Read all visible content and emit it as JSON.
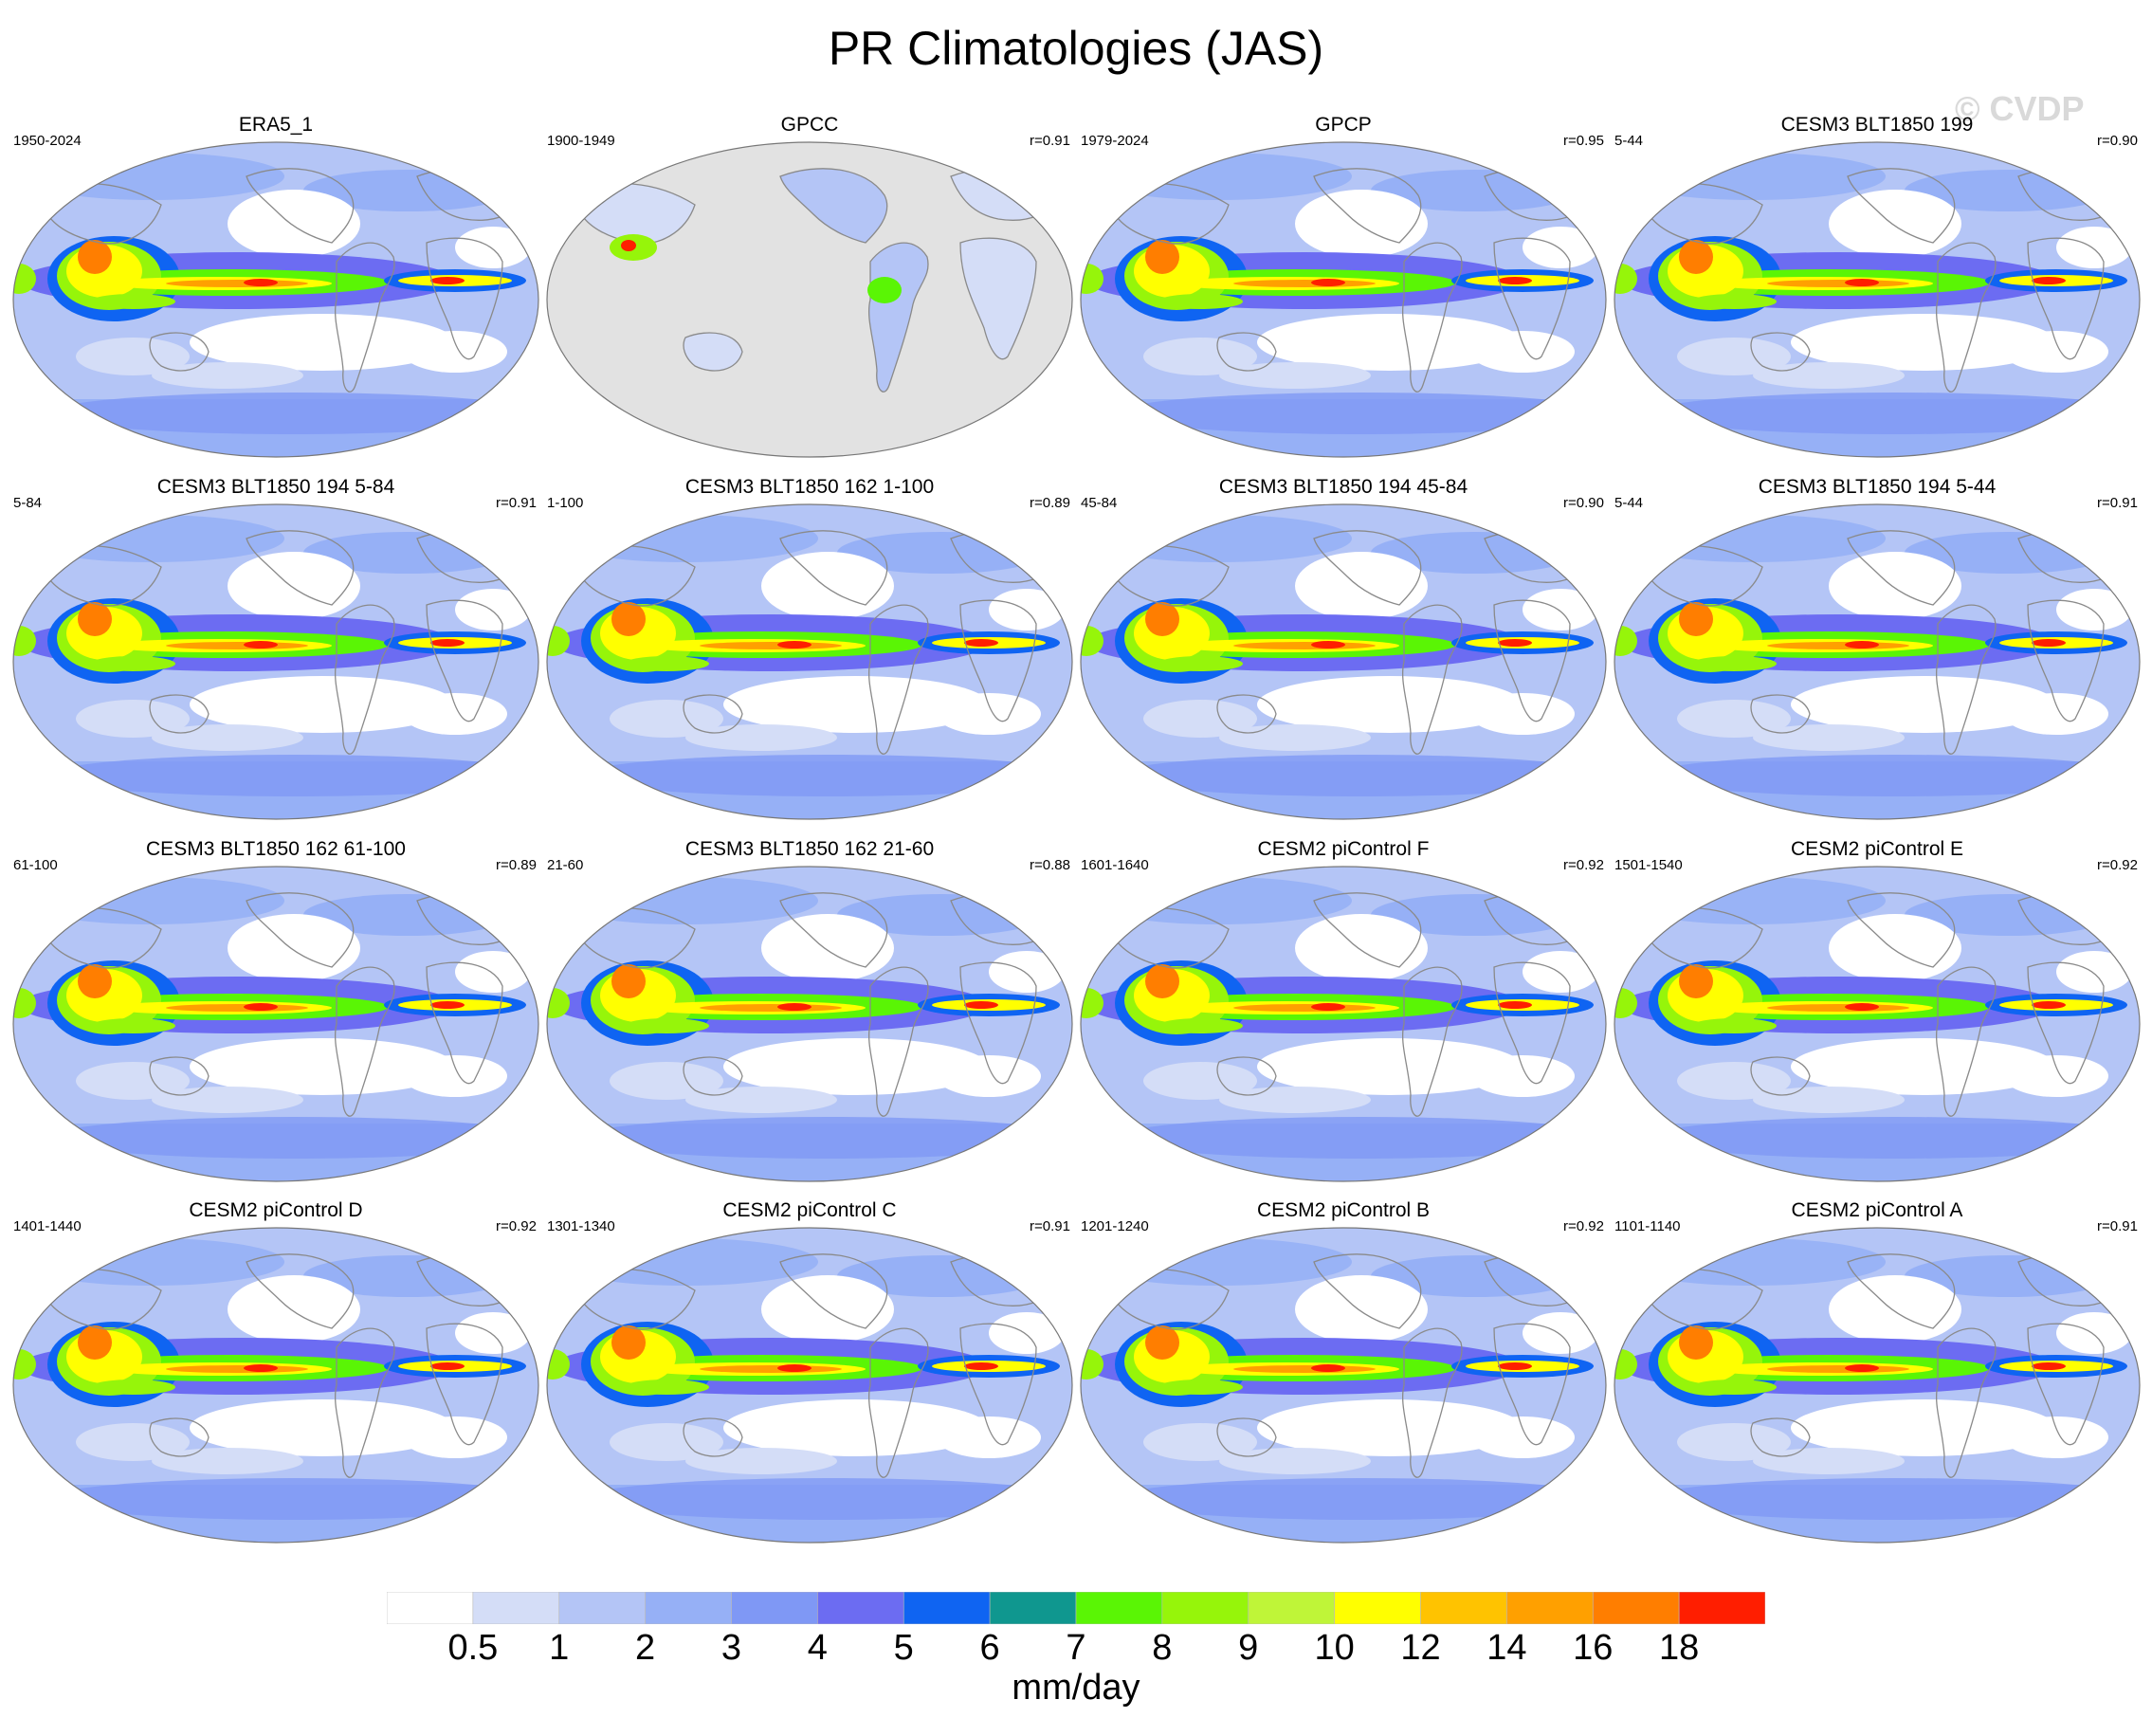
{
  "title": "PR Climatologies (JAS)",
  "watermark": "© CVDP",
  "panels": [
    {
      "title": "ERA5_1",
      "period": "1950-2024",
      "r": "",
      "variant": "obs"
    },
    {
      "title": "GPCC",
      "period": "1900-1949",
      "r": "r=0.91",
      "variant": "land"
    },
    {
      "title": "GPCP",
      "period": "1979-2024",
      "r": "r=0.95",
      "variant": "obs"
    },
    {
      "title": "CESM3 BLT1850 199",
      "period": "5-44",
      "r": "r=0.90",
      "variant": "model"
    },
    {
      "title": "CESM3 BLT1850 194 5-84",
      "period": "5-84",
      "r": "r=0.91",
      "variant": "model"
    },
    {
      "title": "CESM3 BLT1850 162 1-100",
      "period": "1-100",
      "r": "r=0.89",
      "variant": "model"
    },
    {
      "title": "CESM3 BLT1850 194 45-84",
      "period": "45-84",
      "r": "r=0.90",
      "variant": "model"
    },
    {
      "title": "CESM3 BLT1850 194 5-44",
      "period": "5-44",
      "r": "r=0.91",
      "variant": "model"
    },
    {
      "title": "CESM3 BLT1850 162 61-100",
      "period": "61-100",
      "r": "r=0.89",
      "variant": "model"
    },
    {
      "title": "CESM3 BLT1850 162 21-60",
      "period": "21-60",
      "r": "r=0.88",
      "variant": "model"
    },
    {
      "title": "CESM2 piControl F",
      "period": "1601-1640",
      "r": "r=0.92",
      "variant": "model"
    },
    {
      "title": "CESM2 piControl E",
      "period": "1501-1540",
      "r": "r=0.92",
      "variant": "model"
    },
    {
      "title": "CESM2 piControl D",
      "period": "1401-1440",
      "r": "r=0.92",
      "variant": "model"
    },
    {
      "title": "CESM2 piControl C",
      "period": "1301-1340",
      "r": "r=0.91",
      "variant": "model"
    },
    {
      "title": "CESM2 piControl B",
      "period": "1201-1240",
      "r": "r=0.92",
      "variant": "model"
    },
    {
      "title": "CESM2 piControl A",
      "period": "1101-1140",
      "r": "r=0.91",
      "variant": "model"
    }
  ],
  "colorbar": {
    "unit": "mm/day",
    "labels": [
      "0.5",
      "1",
      "2",
      "3",
      "4",
      "5",
      "6",
      "7",
      "8",
      "9",
      "10",
      "12",
      "14",
      "16",
      "18"
    ],
    "colors": [
      "#ffffff",
      "#d4ddf7",
      "#b4c5f6",
      "#96b0f6",
      "#7f98f5",
      "#6c6cf2",
      "#0f64f2",
      "#0f978f",
      "#5af505",
      "#96f50a",
      "#bff538",
      "#ffff00",
      "#ffc300",
      "#ffa000",
      "#ff7e00",
      "#ff1e00"
    ],
    "missing_color": "#e2e2e2",
    "coast_color": "#8a8a8a"
  }
}
